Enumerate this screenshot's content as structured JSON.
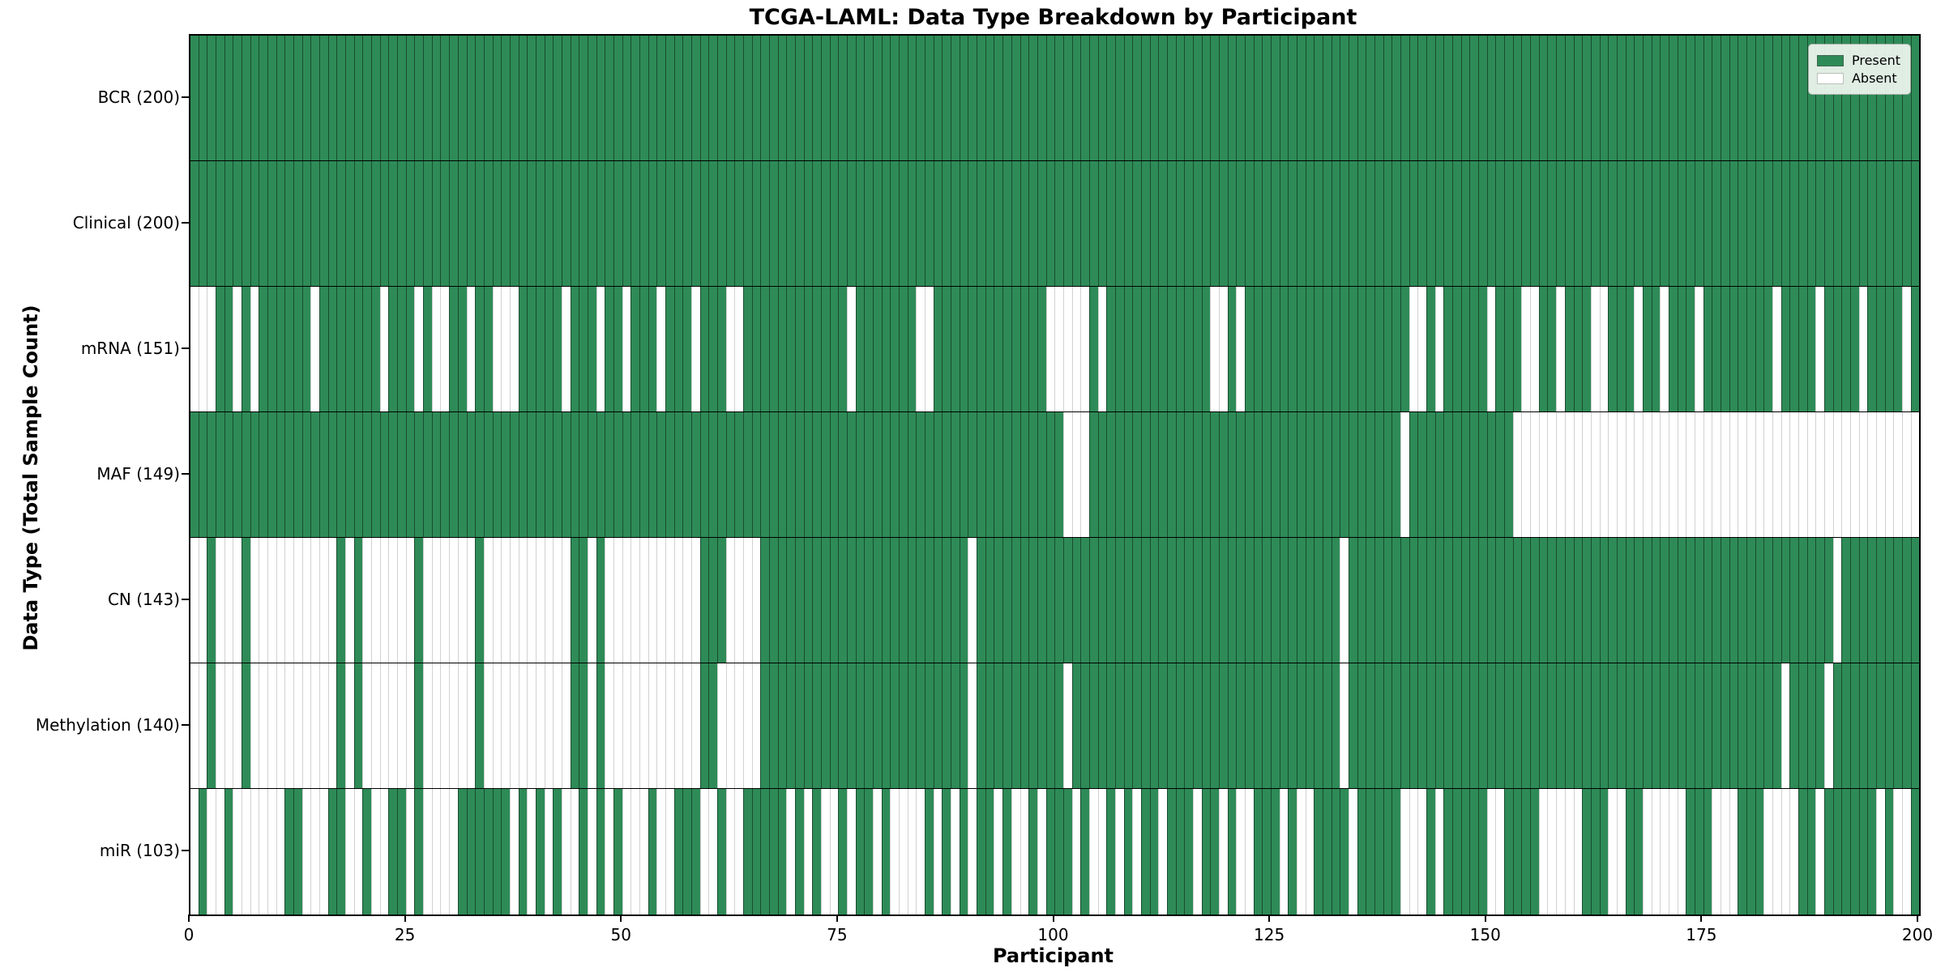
{
  "title": "TCGA-LAML: Data Type Breakdown by Participant",
  "xlabel": "Participant",
  "ylabel": "Data Type (Total Sample Count)",
  "legend": {
    "present_label": "Present",
    "absent_label": "Absent"
  },
  "colors": {
    "present": "#2e8b57",
    "absent": "#ffffff",
    "row_separator": "#000000",
    "plot_border": "#000000"
  },
  "chart_data": {
    "type": "heatmap",
    "n_cols": 200,
    "x_range": [
      0,
      200
    ],
    "x_ticks": [
      0,
      25,
      50,
      75,
      100,
      125,
      150,
      175,
      200
    ],
    "legend_position": "upper right",
    "cell_states": [
      "Present",
      "Absent"
    ],
    "rows": [
      {
        "name": "BCR",
        "label": "BCR (200)",
        "present_count": 200,
        "absent_columns": []
      },
      {
        "name": "Clinical",
        "label": "Clinical (200)",
        "present_count": 200,
        "absent_columns": []
      },
      {
        "name": "mRNA",
        "label": "mRNA (151)",
        "present_count": 151,
        "absent_columns": [
          0,
          1,
          2,
          5,
          7,
          14,
          22,
          26,
          28,
          29,
          32,
          35,
          36,
          37,
          43,
          47,
          50,
          54,
          58,
          62,
          63,
          76,
          84,
          85,
          99,
          100,
          101,
          102,
          103,
          105,
          118,
          119,
          121,
          141,
          142,
          144,
          150,
          154,
          155,
          158,
          162,
          163,
          167,
          170,
          174,
          183,
          188,
          193,
          198
        ]
      },
      {
        "name": "MAF",
        "label": "MAF (149)",
        "present_count": 149,
        "absent_columns": [
          101,
          102,
          103,
          140,
          153,
          154,
          155,
          156,
          157,
          158,
          159,
          160,
          161,
          162,
          163,
          164,
          165,
          166,
          167,
          168,
          169,
          170,
          171,
          172,
          173,
          174,
          175,
          176,
          177,
          178,
          179,
          180,
          181,
          182,
          183,
          184,
          185,
          186,
          187,
          188,
          189,
          190,
          191,
          192,
          193,
          194,
          195,
          196,
          197,
          198,
          199
        ]
      },
      {
        "name": "CN",
        "label": "CN (143)",
        "present_count": 143,
        "absent_columns": [
          0,
          1,
          3,
          4,
          5,
          7,
          8,
          9,
          10,
          11,
          12,
          13,
          14,
          15,
          16,
          18,
          20,
          21,
          22,
          23,
          24,
          25,
          27,
          28,
          29,
          30,
          31,
          32,
          34,
          35,
          36,
          37,
          38,
          39,
          40,
          41,
          42,
          43,
          46,
          48,
          49,
          50,
          51,
          52,
          53,
          54,
          55,
          56,
          57,
          58,
          62,
          63,
          64,
          65,
          90,
          133,
          190
        ]
      },
      {
        "name": "Methylation",
        "label": "Methylation (140)",
        "present_count": 140,
        "absent_columns": [
          0,
          1,
          3,
          4,
          5,
          7,
          8,
          9,
          10,
          11,
          12,
          13,
          14,
          15,
          16,
          18,
          20,
          21,
          22,
          23,
          24,
          25,
          27,
          28,
          29,
          30,
          31,
          32,
          34,
          35,
          36,
          37,
          38,
          39,
          40,
          41,
          42,
          43,
          46,
          48,
          49,
          50,
          51,
          52,
          53,
          54,
          55,
          56,
          57,
          58,
          61,
          62,
          63,
          64,
          65,
          90,
          101,
          133,
          184,
          189
        ]
      },
      {
        "name": "miR",
        "label": "miR (103)",
        "present_count": 103,
        "absent_columns": [
          0,
          2,
          3,
          5,
          6,
          7,
          8,
          9,
          10,
          13,
          14,
          15,
          18,
          19,
          21,
          22,
          25,
          27,
          28,
          29,
          30,
          37,
          39,
          41,
          43,
          44,
          46,
          48,
          50,
          51,
          52,
          54,
          55,
          59,
          60,
          62,
          63,
          69,
          71,
          73,
          74,
          76,
          79,
          81,
          82,
          83,
          84,
          86,
          88,
          90,
          93,
          95,
          96,
          98,
          102,
          104,
          105,
          107,
          109,
          112,
          116,
          119,
          121,
          122,
          126,
          128,
          129,
          134,
          140,
          141,
          142,
          144,
          150,
          151,
          156,
          157,
          158,
          159,
          160,
          164,
          165,
          168,
          169,
          170,
          171,
          172,
          176,
          177,
          178,
          182,
          183,
          184,
          185,
          188,
          195,
          197,
          198
        ]
      }
    ]
  }
}
